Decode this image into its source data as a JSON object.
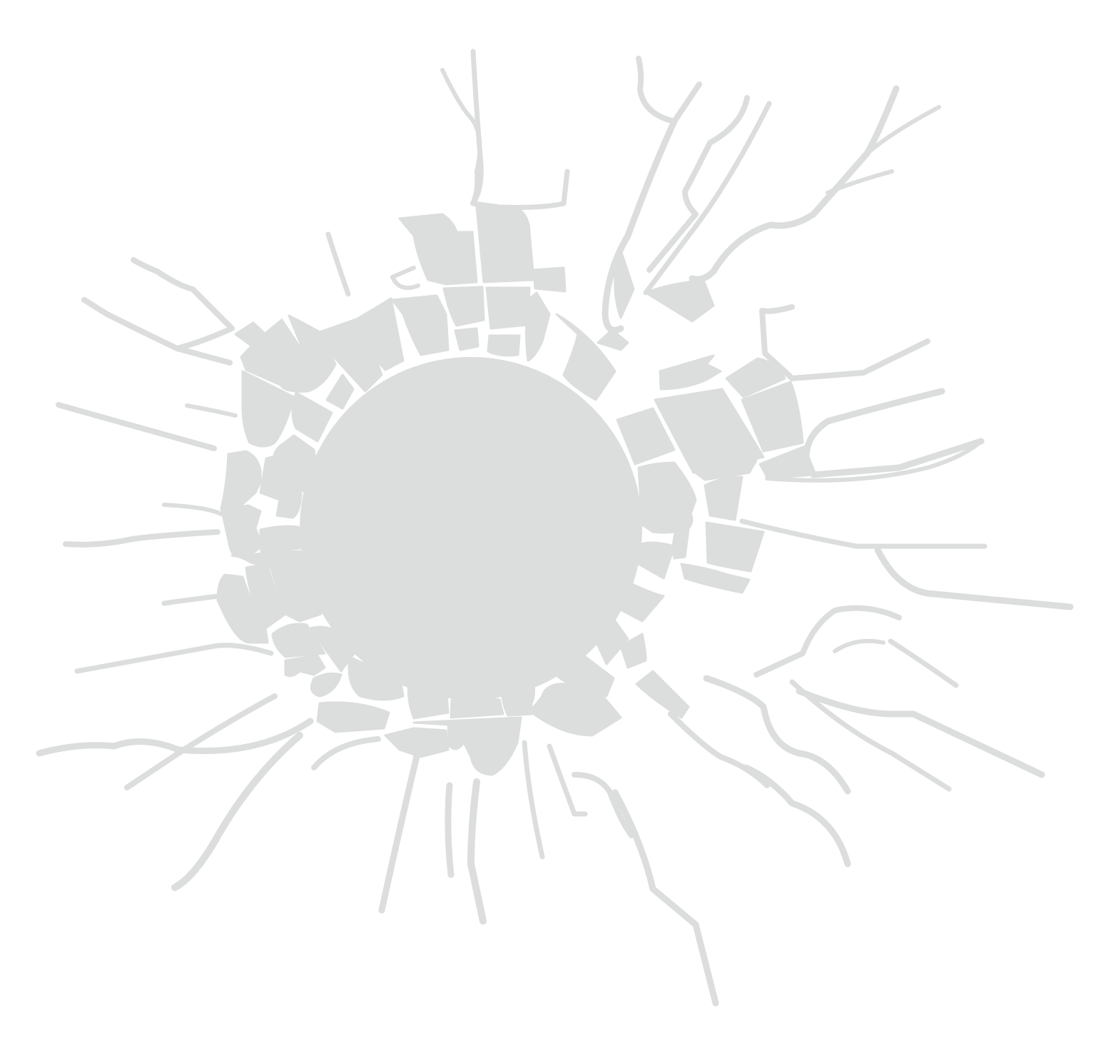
{
  "image": {
    "subject": "shattered-glass-bullet-hole",
    "background_color": "#ffffff",
    "crack_color": "#dcdddd",
    "hole_color": "#dcdddd"
  }
}
